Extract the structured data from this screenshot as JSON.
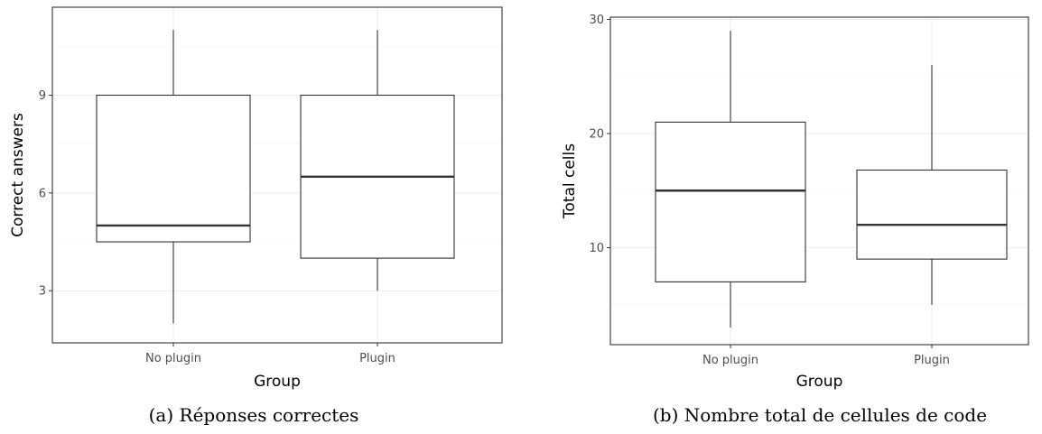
{
  "chart_data": [
    {
      "type": "box",
      "xlabel": "Group",
      "ylabel": "Correct answers",
      "categories": [
        "No plugin",
        "Plugin"
      ],
      "ylim": [
        1.4,
        11.7
      ],
      "yticks": [
        3,
        6,
        9
      ],
      "grid": true,
      "boxes": [
        {
          "category": "No plugin",
          "whisker_low": 2,
          "q1": 4.5,
          "median": 5,
          "q3": 9,
          "whisker_high": 11
        },
        {
          "category": "Plugin",
          "whisker_low": 3,
          "q1": 4,
          "median": 6.5,
          "q3": 9,
          "whisker_high": 11
        }
      ],
      "caption": "(a) Réponses correctes"
    },
    {
      "type": "box",
      "xlabel": "Group",
      "ylabel": "Total cells",
      "categories": [
        "No plugin",
        "Plugin"
      ],
      "ylim": [
        1.5,
        30.2
      ],
      "yticks": [
        10,
        20,
        30
      ],
      "grid": true,
      "boxes": [
        {
          "category": "No plugin",
          "whisker_low": 3,
          "q1": 7,
          "median": 15,
          "q3": 21,
          "whisker_high": 29
        },
        {
          "category": "Plugin",
          "whisker_low": 5,
          "q1": 9,
          "median": 12,
          "q3": 16.8,
          "whisker_high": 26
        }
      ],
      "caption": "(b) Nombre total de cellules de code"
    }
  ]
}
